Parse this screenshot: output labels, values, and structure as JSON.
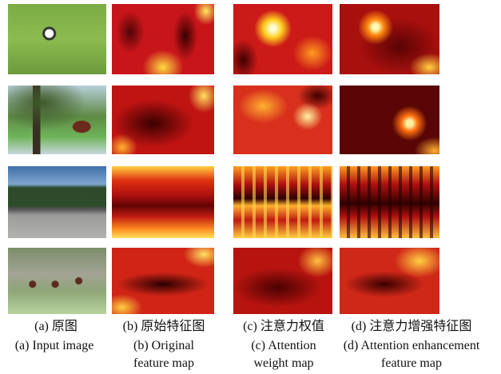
{
  "figure": {
    "columns": [
      {
        "chinese": "(a) 原图",
        "english": [
          "(a) Input image"
        ]
      },
      {
        "chinese": "(b) 原始特征图",
        "english": [
          "(b) Original",
          "feature map"
        ]
      },
      {
        "chinese": "(c) 注意力权值",
        "english": [
          "(c) Attention",
          "weight map"
        ]
      },
      {
        "chinese": "(d) 注意力增强特征图",
        "english": [
          "(d) Attention enhancement",
          "feature map"
        ]
      }
    ]
  }
}
